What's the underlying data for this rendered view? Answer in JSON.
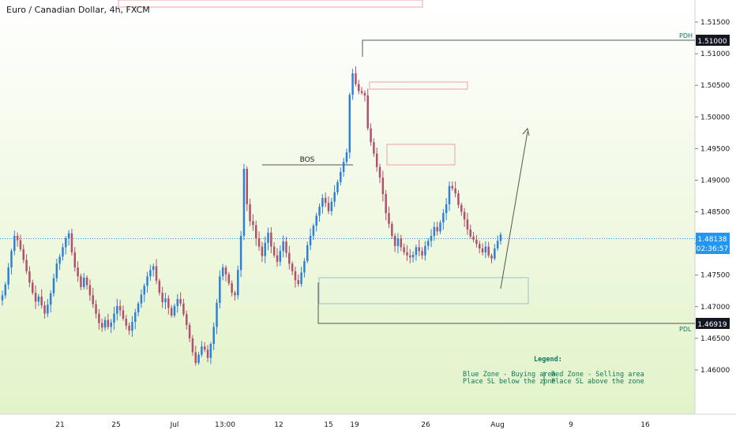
{
  "header": {
    "title": "Euro / Canadian Dollar, 4h, FXCM"
  },
  "colors": {
    "up": "#2f7fd6",
    "down": "#b0506d",
    "bg_top": "#ffffff",
    "bg_bottom": "#e2f3c8",
    "level_line": "#555555",
    "legend_text": "#0b7a5d",
    "red_zone": "#e8a3a3",
    "blue_zone": "#97c0d8",
    "current_price_bg": "#2196f3"
  },
  "price_axis": {
    "ticks": [
      "1.51500",
      "1.51000",
      "1.50500",
      "1.50000",
      "1.49500",
      "1.49000",
      "1.48500",
      "1.48000",
      "1.47500",
      "1.47000",
      "1.46500",
      "1.46000"
    ],
    "current_price": "1.48138",
    "countdown": "02:36:57",
    "pdh_value": "1.51000",
    "pdl_value": "1.46919"
  },
  "time_axis": {
    "labels": [
      "21",
      "25",
      "Jul",
      "13:00",
      "12",
      "15",
      "19",
      "26",
      "Aug",
      "9",
      "16"
    ]
  },
  "annotations": {
    "bos": "BOS",
    "pdh": "PDH",
    "pdl": "PDL"
  },
  "legend": {
    "title": "Legend:",
    "blue_line1": "Blue Zone - Buying area",
    "blue_line2": "Place SL below the zone",
    "red_line1": "Red Zone - Selling area",
    "red_line2": "Place SL above the zone"
  },
  "chart_data": {
    "type": "candlestick",
    "symbol": "EUR/CAD",
    "timeframe": "4h",
    "ylim": [
      1.4555,
      1.5175
    ],
    "closes": [
      1.4718,
      1.4735,
      1.4762,
      1.4788,
      1.4812,
      1.4805,
      1.4791,
      1.4774,
      1.4756,
      1.4738,
      1.4722,
      1.4708,
      1.4716,
      1.4702,
      1.4689,
      1.4703,
      1.4721,
      1.4745,
      1.4768,
      1.4779,
      1.4794,
      1.4808,
      1.4816,
      1.4786,
      1.4762,
      1.4748,
      1.4731,
      1.4746,
      1.4734,
      1.4718,
      1.4704,
      1.4689,
      1.4674,
      1.4667,
      1.4679,
      1.4668,
      1.4675,
      1.4689,
      1.4701,
      1.4694,
      1.4681,
      1.467,
      1.4662,
      1.4676,
      1.4691,
      1.4705,
      1.4719,
      1.4733,
      1.4748,
      1.4758,
      1.4764,
      1.4741,
      1.4722,
      1.4707,
      1.4713,
      1.4698,
      1.4686,
      1.4701,
      1.4712,
      1.4705,
      1.4688,
      1.4671,
      1.465,
      1.4628,
      1.4611,
      1.4624,
      1.4637,
      1.4632,
      1.4619,
      1.4641,
      1.4668,
      1.4706,
      1.4748,
      1.4762,
      1.4751,
      1.4737,
      1.4722,
      1.4718,
      1.4758,
      1.4812,
      1.4918,
      1.4862,
      1.4835,
      1.4829,
      1.4808,
      1.4795,
      1.478,
      1.4801,
      1.4817,
      1.4795,
      1.4781,
      1.4771,
      1.4788,
      1.4803,
      1.4785,
      1.4768,
      1.4756,
      1.4742,
      1.4736,
      1.4754,
      1.4772,
      1.4797,
      1.4812,
      1.4828,
      1.4844,
      1.4858,
      1.4872,
      1.4864,
      1.4851,
      1.4866,
      1.4881,
      1.4897,
      1.4913,
      1.4929,
      1.4944,
      1.5035,
      1.5069,
      1.5052,
      1.5041,
      1.5038,
      1.5034,
      1.4982,
      1.496,
      1.4942,
      1.4921,
      1.4904,
      1.4878,
      1.4848,
      1.4831,
      1.4812,
      1.4796,
      1.4808,
      1.4794,
      1.4786,
      1.4781,
      1.4778,
      1.4782,
      1.4794,
      1.4788,
      1.4781,
      1.4796,
      1.4804,
      1.4812,
      1.4826,
      1.4819,
      1.4833,
      1.4848,
      1.4862,
      1.4891,
      1.4887,
      1.4879,
      1.4861,
      1.485,
      1.4838,
      1.4822,
      1.4811,
      1.4806,
      1.4799,
      1.4792,
      1.4786,
      1.4795,
      1.4781,
      1.4776,
      1.4792,
      1.4804,
      1.4814
    ]
  }
}
